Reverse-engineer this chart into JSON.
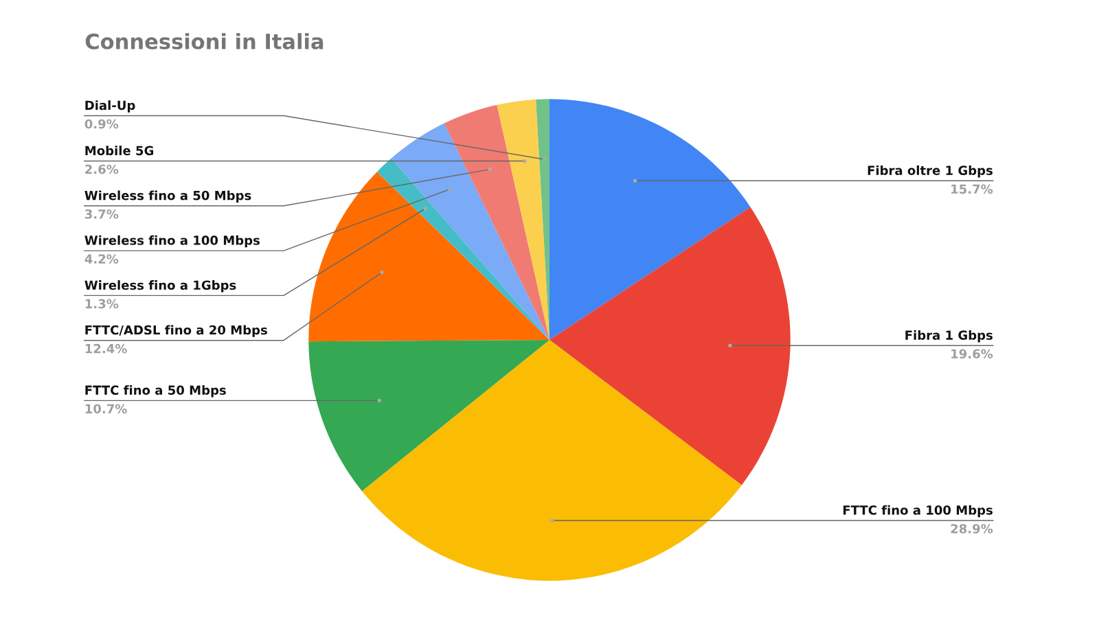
{
  "chart_data": {
    "type": "pie",
    "title": "Connessioni in Italia",
    "categories": [
      "Fibra oltre 1 Gbps",
      "Fibra 1 Gbps",
      "FTTC fino a 100 Mbps",
      "FTTC fino a 50 Mbps",
      "FTTC/ADSL fino a 20 Mbps",
      "Wireless fino a 1Gbps",
      "Wireless fino a 100 Mbps",
      "Wireless fino a 50 Mbps",
      "Mobile 5G",
      "Dial-Up"
    ],
    "values": [
      15.7,
      19.6,
      28.9,
      10.7,
      12.4,
      1.3,
      4.2,
      3.7,
      2.6,
      0.9
    ],
    "colors": [
      "#4285f4",
      "#ea4335",
      "#fbbc04",
      "#34a853",
      "#ff6d01",
      "#46bdc6",
      "#7baaf7",
      "#f07b72",
      "#fcd04f",
      "#71c287"
    ],
    "value_labels": [
      "15.7%",
      "19.6%",
      "28.9%",
      "10.7%",
      "12.4%",
      "1.3%",
      "4.2%",
      "3.7%",
      "2.6%",
      "0.9%"
    ],
    "legend": false
  }
}
